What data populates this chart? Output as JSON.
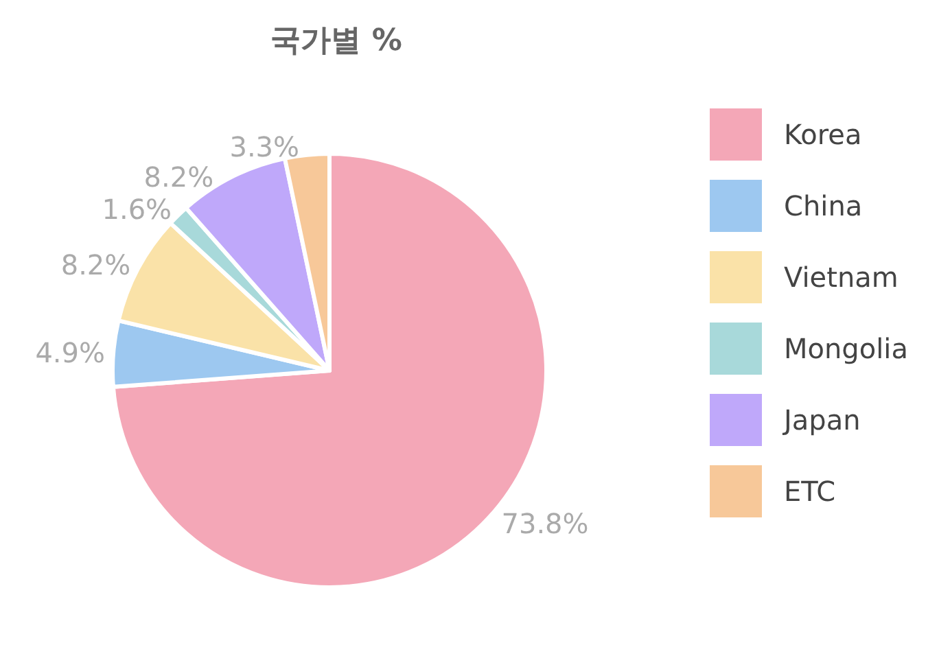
{
  "chart_data": {
    "type": "pie",
    "title": "국가별 %",
    "categories": [
      "Korea",
      "China",
      "Vietnam",
      "Mongolia",
      "Japan",
      "ETC"
    ],
    "values": [
      73.8,
      4.9,
      8.2,
      1.6,
      8.2,
      3.3
    ],
    "value_labels": [
      "73.8%",
      "4.9%",
      "8.2%",
      "1.6%",
      "8.2%",
      "3.3%"
    ],
    "colors": [
      "#f4a7b7",
      "#9dc8f0",
      "#fae2a8",
      "#a8d9da",
      "#bfa8fa",
      "#f7c899"
    ],
    "legend": "right"
  }
}
